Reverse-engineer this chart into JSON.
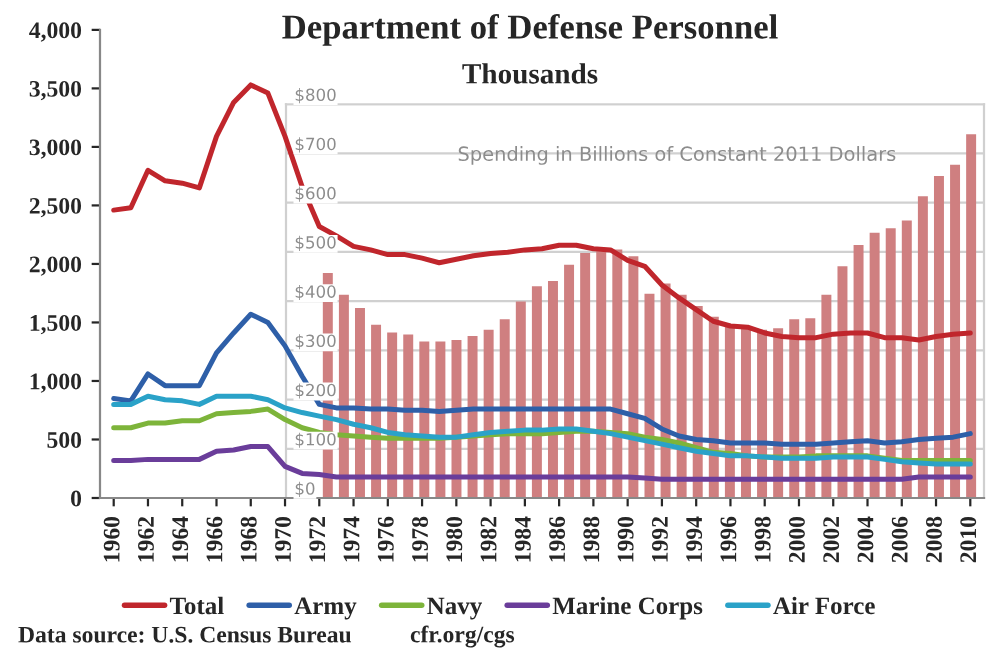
{
  "chart_data": [
    {
      "type": "line",
      "title": "Department of Defense Personnel",
      "subtitle": "Thousands",
      "x": [
        1960,
        1961,
        1962,
        1963,
        1964,
        1965,
        1966,
        1967,
        1968,
        1969,
        1970,
        1971,
        1972,
        1973,
        1974,
        1975,
        1976,
        1977,
        1978,
        1979,
        1980,
        1981,
        1982,
        1983,
        1984,
        1985,
        1986,
        1987,
        1988,
        1989,
        1990,
        1991,
        1992,
        1993,
        1994,
        1995,
        1996,
        1997,
        1998,
        1999,
        2000,
        2001,
        2002,
        2003,
        2004,
        2005,
        2006,
        2007,
        2008,
        2009,
        2010
      ],
      "series": [
        {
          "name": "Total",
          "color": "#c0262c",
          "values": [
            2460,
            2480,
            2800,
            2710,
            2690,
            2650,
            3090,
            3380,
            3530,
            3460,
            3090,
            2660,
            2320,
            2240,
            2150,
            2120,
            2080,
            2080,
            2050,
            2010,
            2040,
            2070,
            2090,
            2100,
            2120,
            2130,
            2160,
            2160,
            2130,
            2120,
            2030,
            1980,
            1820,
            1710,
            1610,
            1510,
            1470,
            1460,
            1410,
            1380,
            1370,
            1370,
            1400,
            1410,
            1410,
            1370,
            1370,
            1350,
            1380,
            1400,
            1410
          ]
        },
        {
          "name": "Army",
          "color": "#2e5fa8",
          "values": [
            850,
            830,
            1060,
            960,
            960,
            960,
            1240,
            1410,
            1570,
            1500,
            1300,
            1040,
            800,
            770,
            770,
            760,
            760,
            750,
            750,
            740,
            750,
            760,
            760,
            760,
            760,
            760,
            760,
            760,
            760,
            760,
            720,
            680,
            590,
            530,
            500,
            490,
            470,
            470,
            470,
            460,
            460,
            460,
            470,
            480,
            490,
            470,
            480,
            500,
            510,
            520,
            550
          ]
        },
        {
          "name": "Navy",
          "color": "#7db43a",
          "values": [
            600,
            600,
            640,
            640,
            660,
            660,
            720,
            730,
            740,
            760,
            670,
            600,
            560,
            540,
            530,
            520,
            510,
            510,
            510,
            510,
            520,
            530,
            540,
            550,
            550,
            550,
            560,
            570,
            570,
            560,
            550,
            520,
            500,
            470,
            430,
            390,
            380,
            360,
            350,
            350,
            350,
            360,
            360,
            360,
            360,
            340,
            320,
            320,
            320,
            320,
            320
          ]
        },
        {
          "name": "Marine Corps",
          "color": "#6a3d9a",
          "values": [
            320,
            320,
            330,
            330,
            330,
            330,
            400,
            410,
            440,
            440,
            270,
            210,
            200,
            180,
            180,
            180,
            180,
            180,
            180,
            180,
            180,
            180,
            180,
            180,
            180,
            180,
            180,
            180,
            180,
            180,
            180,
            170,
            160,
            160,
            160,
            160,
            160,
            160,
            160,
            160,
            160,
            160,
            160,
            160,
            160,
            160,
            160,
            180,
            180,
            180,
            180
          ]
        },
        {
          "name": "Air Force",
          "color": "#2aa2c8",
          "values": [
            800,
            800,
            870,
            840,
            830,
            800,
            870,
            870,
            870,
            840,
            770,
            730,
            700,
            670,
            630,
            600,
            560,
            540,
            530,
            520,
            520,
            540,
            560,
            570,
            580,
            580,
            590,
            590,
            570,
            550,
            520,
            490,
            460,
            430,
            400,
            380,
            360,
            360,
            350,
            340,
            340,
            340,
            350,
            350,
            350,
            330,
            310,
            300,
            290,
            290,
            290
          ]
        }
      ],
      "xlim": [
        1959.2,
        2010.8
      ],
      "xticks": [
        1960,
        1962,
        1964,
        1966,
        1968,
        1970,
        1972,
        1974,
        1976,
        1978,
        1980,
        1982,
        1984,
        1986,
        1988,
        1990,
        1992,
        1994,
        1996,
        1998,
        2000,
        2002,
        2004,
        2006,
        2008,
        2010
      ],
      "ylim": [
        0,
        4000
      ],
      "yticks": [
        {
          "value": 0,
          "label": "0"
        },
        {
          "value": 500,
          "label": "500"
        },
        {
          "value": 1000,
          "label": "1,000"
        },
        {
          "value": 1500,
          "label": "1,500"
        },
        {
          "value": 2000,
          "label": "2,000"
        },
        {
          "value": 2500,
          "label": "2,500"
        },
        {
          "value": 3000,
          "label": "3,000"
        },
        {
          "value": 3500,
          "label": "3,500"
        },
        {
          "value": 4000,
          "label": "4,000"
        }
      ],
      "legend": "bottom",
      "annotations": [
        "Data source: U.S. Census Bureau",
        "cfr.org/cgs"
      ]
    },
    {
      "type": "bar",
      "categories": [
        null,
        null,
        null,
        null,
        null,
        null,
        null,
        null,
        null,
        null,
        null,
        null,
        null,
        null,
        null,
        null,
        null,
        null,
        null,
        null,
        null,
        null,
        null,
        null,
        null,
        null,
        null,
        null,
        null,
        null,
        null,
        null,
        null,
        null,
        null,
        null,
        null,
        null,
        null,
        null,
        null
      ],
      "values": [
        457,
        413,
        386,
        352,
        336,
        332,
        318,
        318,
        321,
        329,
        342,
        363,
        399,
        430,
        441,
        474,
        498,
        501,
        505,
        491,
        415,
        436,
        413,
        390,
        368,
        349,
        349,
        342,
        345,
        363,
        365,
        413,
        471,
        514,
        539,
        548,
        564,
        613,
        654,
        677,
        739
      ],
      "color": "#cf7f80",
      "ylim": [
        0,
        800
      ],
      "yticks": [
        {
          "value": 0,
          "label": "$0"
        },
        {
          "value": 100,
          "label": "$100"
        },
        {
          "value": 200,
          "label": "$200"
        },
        {
          "value": 300,
          "label": "$300"
        },
        {
          "value": 400,
          "label": "$400"
        },
        {
          "value": 500,
          "label": "$500"
        },
        {
          "value": 600,
          "label": "$600"
        },
        {
          "value": 700,
          "label": "$700"
        },
        {
          "value": 800,
          "label": "$800"
        }
      ],
      "grid": "y",
      "tick_labels": "y",
      "annotations": [
        "Spending in Billions of Constant 2011 Dollars"
      ]
    }
  ]
}
